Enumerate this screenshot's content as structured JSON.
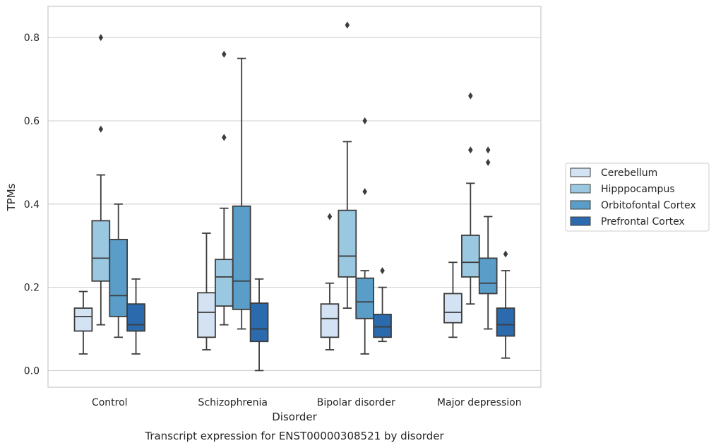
{
  "chart_data": {
    "type": "box",
    "title": "",
    "caption": "Transcript expression for ENST00000308521 by disorder",
    "xlabel": "Disorder",
    "ylabel": "TPMs",
    "ylim": [
      -0.04,
      0.875
    ],
    "yticks": [
      "0.0",
      "0.2",
      "0.4",
      "0.6",
      "0.8"
    ],
    "grid": "horizontal",
    "legend_position": "right",
    "categories": [
      "Control",
      "Schizophrenia",
      "Bipolar disorder",
      "Major depression"
    ],
    "series": [
      {
        "name": "Cerebellum",
        "color": "#d3e3f3",
        "boxes": [
          {
            "whislo": 0.04,
            "q1": 0.095,
            "med": 0.13,
            "q3": 0.15,
            "whishi": 0.19,
            "fliers": []
          },
          {
            "whislo": 0.05,
            "q1": 0.08,
            "med": 0.14,
            "q3": 0.187,
            "whishi": 0.33,
            "fliers": []
          },
          {
            "whislo": 0.05,
            "q1": 0.08,
            "med": 0.125,
            "q3": 0.16,
            "whishi": 0.21,
            "fliers": [
              0.37
            ]
          },
          {
            "whislo": 0.08,
            "q1": 0.115,
            "med": 0.14,
            "q3": 0.185,
            "whishi": 0.26,
            "fliers": []
          }
        ]
      },
      {
        "name": "Hipppocampus",
        "color": "#9ac8e0",
        "boxes": [
          {
            "whislo": 0.11,
            "q1": 0.215,
            "med": 0.27,
            "q3": 0.36,
            "whishi": 0.47,
            "fliers": [
              0.58,
              0.8
            ]
          },
          {
            "whislo": 0.11,
            "q1": 0.155,
            "med": 0.225,
            "q3": 0.267,
            "whishi": 0.39,
            "fliers": [
              0.56,
              0.76
            ]
          },
          {
            "whislo": 0.15,
            "q1": 0.225,
            "med": 0.275,
            "q3": 0.385,
            "whishi": 0.55,
            "fliers": [
              0.83
            ]
          },
          {
            "whislo": 0.16,
            "q1": 0.225,
            "med": 0.26,
            "q3": 0.325,
            "whishi": 0.45,
            "fliers": [
              0.53,
              0.66
            ]
          }
        ]
      },
      {
        "name": "Orbitofontal Cortex",
        "color": "#5a9dc9",
        "boxes": [
          {
            "whislo": 0.08,
            "q1": 0.13,
            "med": 0.18,
            "q3": 0.315,
            "whishi": 0.4,
            "fliers": []
          },
          {
            "whislo": 0.1,
            "q1": 0.147,
            "med": 0.215,
            "q3": 0.395,
            "whishi": 0.75,
            "fliers": []
          },
          {
            "whislo": 0.04,
            "q1": 0.125,
            "med": 0.165,
            "q3": 0.222,
            "whishi": 0.24,
            "fliers": [
              0.43,
              0.6
            ]
          },
          {
            "whislo": 0.1,
            "q1": 0.185,
            "med": 0.21,
            "q3": 0.27,
            "whishi": 0.37,
            "fliers": [
              0.5,
              0.53
            ]
          }
        ]
      },
      {
        "name": "Prefrontal Cortex",
        "color": "#2a6aad",
        "boxes": [
          {
            "whislo": 0.04,
            "q1": 0.095,
            "med": 0.11,
            "q3": 0.16,
            "whishi": 0.22,
            "fliers": []
          },
          {
            "whislo": 0.0,
            "q1": 0.07,
            "med": 0.1,
            "q3": 0.162,
            "whishi": 0.22,
            "fliers": []
          },
          {
            "whislo": 0.07,
            "q1": 0.08,
            "med": 0.105,
            "q3": 0.135,
            "whishi": 0.2,
            "fliers": [
              0.24
            ]
          },
          {
            "whislo": 0.03,
            "q1": 0.083,
            "med": 0.11,
            "q3": 0.15,
            "whishi": 0.24,
            "fliers": [
              0.28
            ]
          }
        ]
      }
    ]
  }
}
